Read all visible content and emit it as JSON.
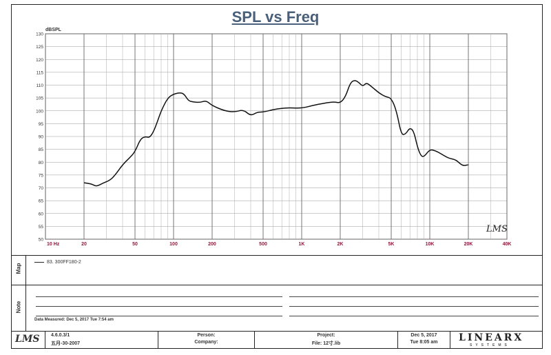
{
  "chart_data": {
    "type": "line",
    "title": "SPL vs Freq",
    "ylabel": "dBSPL",
    "xlabel": "",
    "xscale": "log",
    "xlim": [
      10,
      40000
    ],
    "ylim": [
      50,
      130
    ],
    "grid": true,
    "y_ticks": [
      "130",
      "125",
      "120",
      "115",
      "110",
      "105",
      "100",
      "95",
      "90",
      "85",
      "80",
      "75",
      "70",
      "65",
      "60",
      "55",
      "50"
    ],
    "x_tick_labels": [
      {
        "f": 10,
        "label": "10 Hz"
      },
      {
        "f": 20,
        "label": "20"
      },
      {
        "f": 50,
        "label": "50"
      },
      {
        "f": 100,
        "label": "100"
      },
      {
        "f": 200,
        "label": "200"
      },
      {
        "f": 500,
        "label": "500"
      },
      {
        "f": 1000,
        "label": "1K"
      },
      {
        "f": 2000,
        "label": "2K"
      },
      {
        "f": 5000,
        "label": "5K"
      },
      {
        "f": 10000,
        "label": "10K"
      },
      {
        "f": 20000,
        "label": "20K"
      },
      {
        "f": 40000,
        "label": "40K"
      }
    ],
    "series": [
      {
        "name": "83. 300FF180-2",
        "x": [
          20,
          23,
          25,
          28,
          32,
          35,
          40,
          45,
          50,
          55,
          60,
          65,
          70,
          75,
          80,
          90,
          100,
          110,
          120,
          130,
          140,
          160,
          180,
          200,
          250,
          300,
          350,
          400,
          450,
          500,
          600,
          700,
          800,
          1000,
          1200,
          1500,
          1800,
          2000,
          2200,
          2400,
          2600,
          2800,
          3000,
          3200,
          3500,
          4000,
          4500,
          5000,
          5500,
          6000,
          6500,
          7000,
          7500,
          8000,
          8500,
          9000,
          10000,
          11000,
          12000,
          14000,
          16000,
          18000,
          20000
        ],
        "y": [
          72,
          71.5,
          70.5,
          71.8,
          73,
          75,
          79,
          81.5,
          84,
          89,
          90,
          89.5,
          92,
          96,
          100,
          105,
          106.5,
          107,
          106.8,
          104,
          103.5,
          103.2,
          104,
          102,
          100,
          99.5,
          100.5,
          98,
          99.5,
          99.5,
          100.5,
          101,
          101.2,
          101,
          102,
          103,
          103.5,
          103,
          105.5,
          111,
          112,
          111,
          109.5,
          111,
          109.5,
          107,
          105.5,
          105,
          100,
          90.5,
          91,
          93.5,
          92,
          86,
          82.5,
          82,
          85,
          84.5,
          83.5,
          81.5,
          81,
          78.5,
          79
        ]
      }
    ],
    "watermark": "LMS"
  },
  "legend": {
    "entry": "83. 300FF180-2"
  },
  "side_labels": {
    "top": "Map",
    "bottom": "Note"
  },
  "note": {
    "date_measured": "Data Measured: Dec 5, 2017  Tue  7:54 am"
  },
  "footer": {
    "logo": "LMS",
    "version": "4.6.0.3/1",
    "version_date": "五月-30-2007",
    "person_label": "Person:",
    "company_label": "Company:",
    "project_label": "Project:",
    "file_label": "File: 12寸.lib",
    "date": "Dec 5, 2017",
    "time": "Tue  8:05 am",
    "brand": "LINEARX",
    "brand_sub": "SYSTEMS"
  }
}
